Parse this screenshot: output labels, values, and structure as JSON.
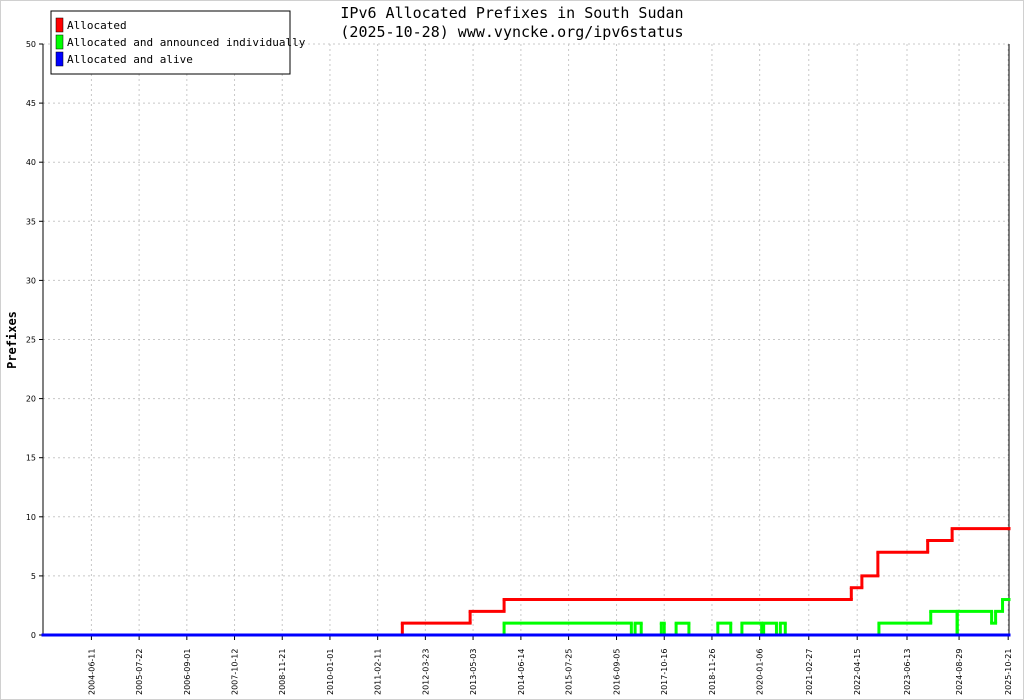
{
  "chart_data": {
    "type": "line",
    "drawstyle": "steps-post",
    "title": [
      "IPv6 Allocated Prefixes in South Sudan",
      "(2025-10-28) www.vyncke.org/ipv6status"
    ],
    "ylabel": "Prefixes",
    "xlim": [
      "2003-04-26",
      "2025-10-28"
    ],
    "xticks": [
      "2004-06-11",
      "2005-07-22",
      "2006-09-01",
      "2007-10-12",
      "2008-11-21",
      "2010-01-01",
      "2011-02-11",
      "2012-03-23",
      "2013-05-03",
      "2014-06-14",
      "2015-07-25",
      "2016-09-05",
      "2017-10-16",
      "2018-11-26",
      "2020-01-06",
      "2021-02-27",
      "2022-04-15",
      "2023-06-13",
      "2024-08-29",
      "2025-10-21"
    ],
    "ylim": [
      0,
      50
    ],
    "yticks": [
      0,
      5,
      10,
      15,
      20,
      25,
      30,
      35,
      40,
      45,
      50
    ],
    "grid": true,
    "legend": "upper left",
    "series": [
      {
        "name": "Allocated",
        "color": "#ff0000",
        "x": [
          "2003-04-26",
          "2011-09-09",
          "2013-04-08",
          "2014-01-22",
          "2022-02-24",
          "2022-05-25",
          "2022-10-08",
          "2023-12-06",
          "2024-07-01",
          "2025-10-28"
        ],
        "values": [
          0,
          1,
          2,
          3,
          4,
          5,
          7,
          8,
          9,
          9
        ]
      },
      {
        "name": "Allocated and announced individually",
        "color": "#00ff00",
        "x": [
          "2003-04-26",
          "2014-01-22",
          "2017-01-09",
          "2017-02-10",
          "2017-04-03",
          "2017-09-21",
          "2017-10-16",
          "2018-01-25",
          "2018-05-14",
          "2019-01-15",
          "2019-05-05",
          "2019-08-08",
          "2020-01-23",
          "2020-02-09",
          "2020-05-28",
          "2020-06-30",
          "2020-08-11",
          "2022-10-17",
          "2024-01-01",
          "2024-08-12",
          "2024-08-14",
          "2025-06-02",
          "2025-07-06",
          "2025-09-03",
          "2025-10-28"
        ],
        "values": [
          0,
          1,
          0,
          1,
          0,
          1,
          0,
          1,
          0,
          1,
          0,
          1,
          0,
          1,
          0,
          1,
          0,
          1,
          2,
          0,
          2,
          1,
          2,
          3,
          3
        ]
      },
      {
        "name": "Allocated and alive",
        "color": "#0000ff",
        "x": [
          "2003-04-26",
          "2025-10-28"
        ],
        "values": [
          0,
          0
        ]
      }
    ]
  }
}
